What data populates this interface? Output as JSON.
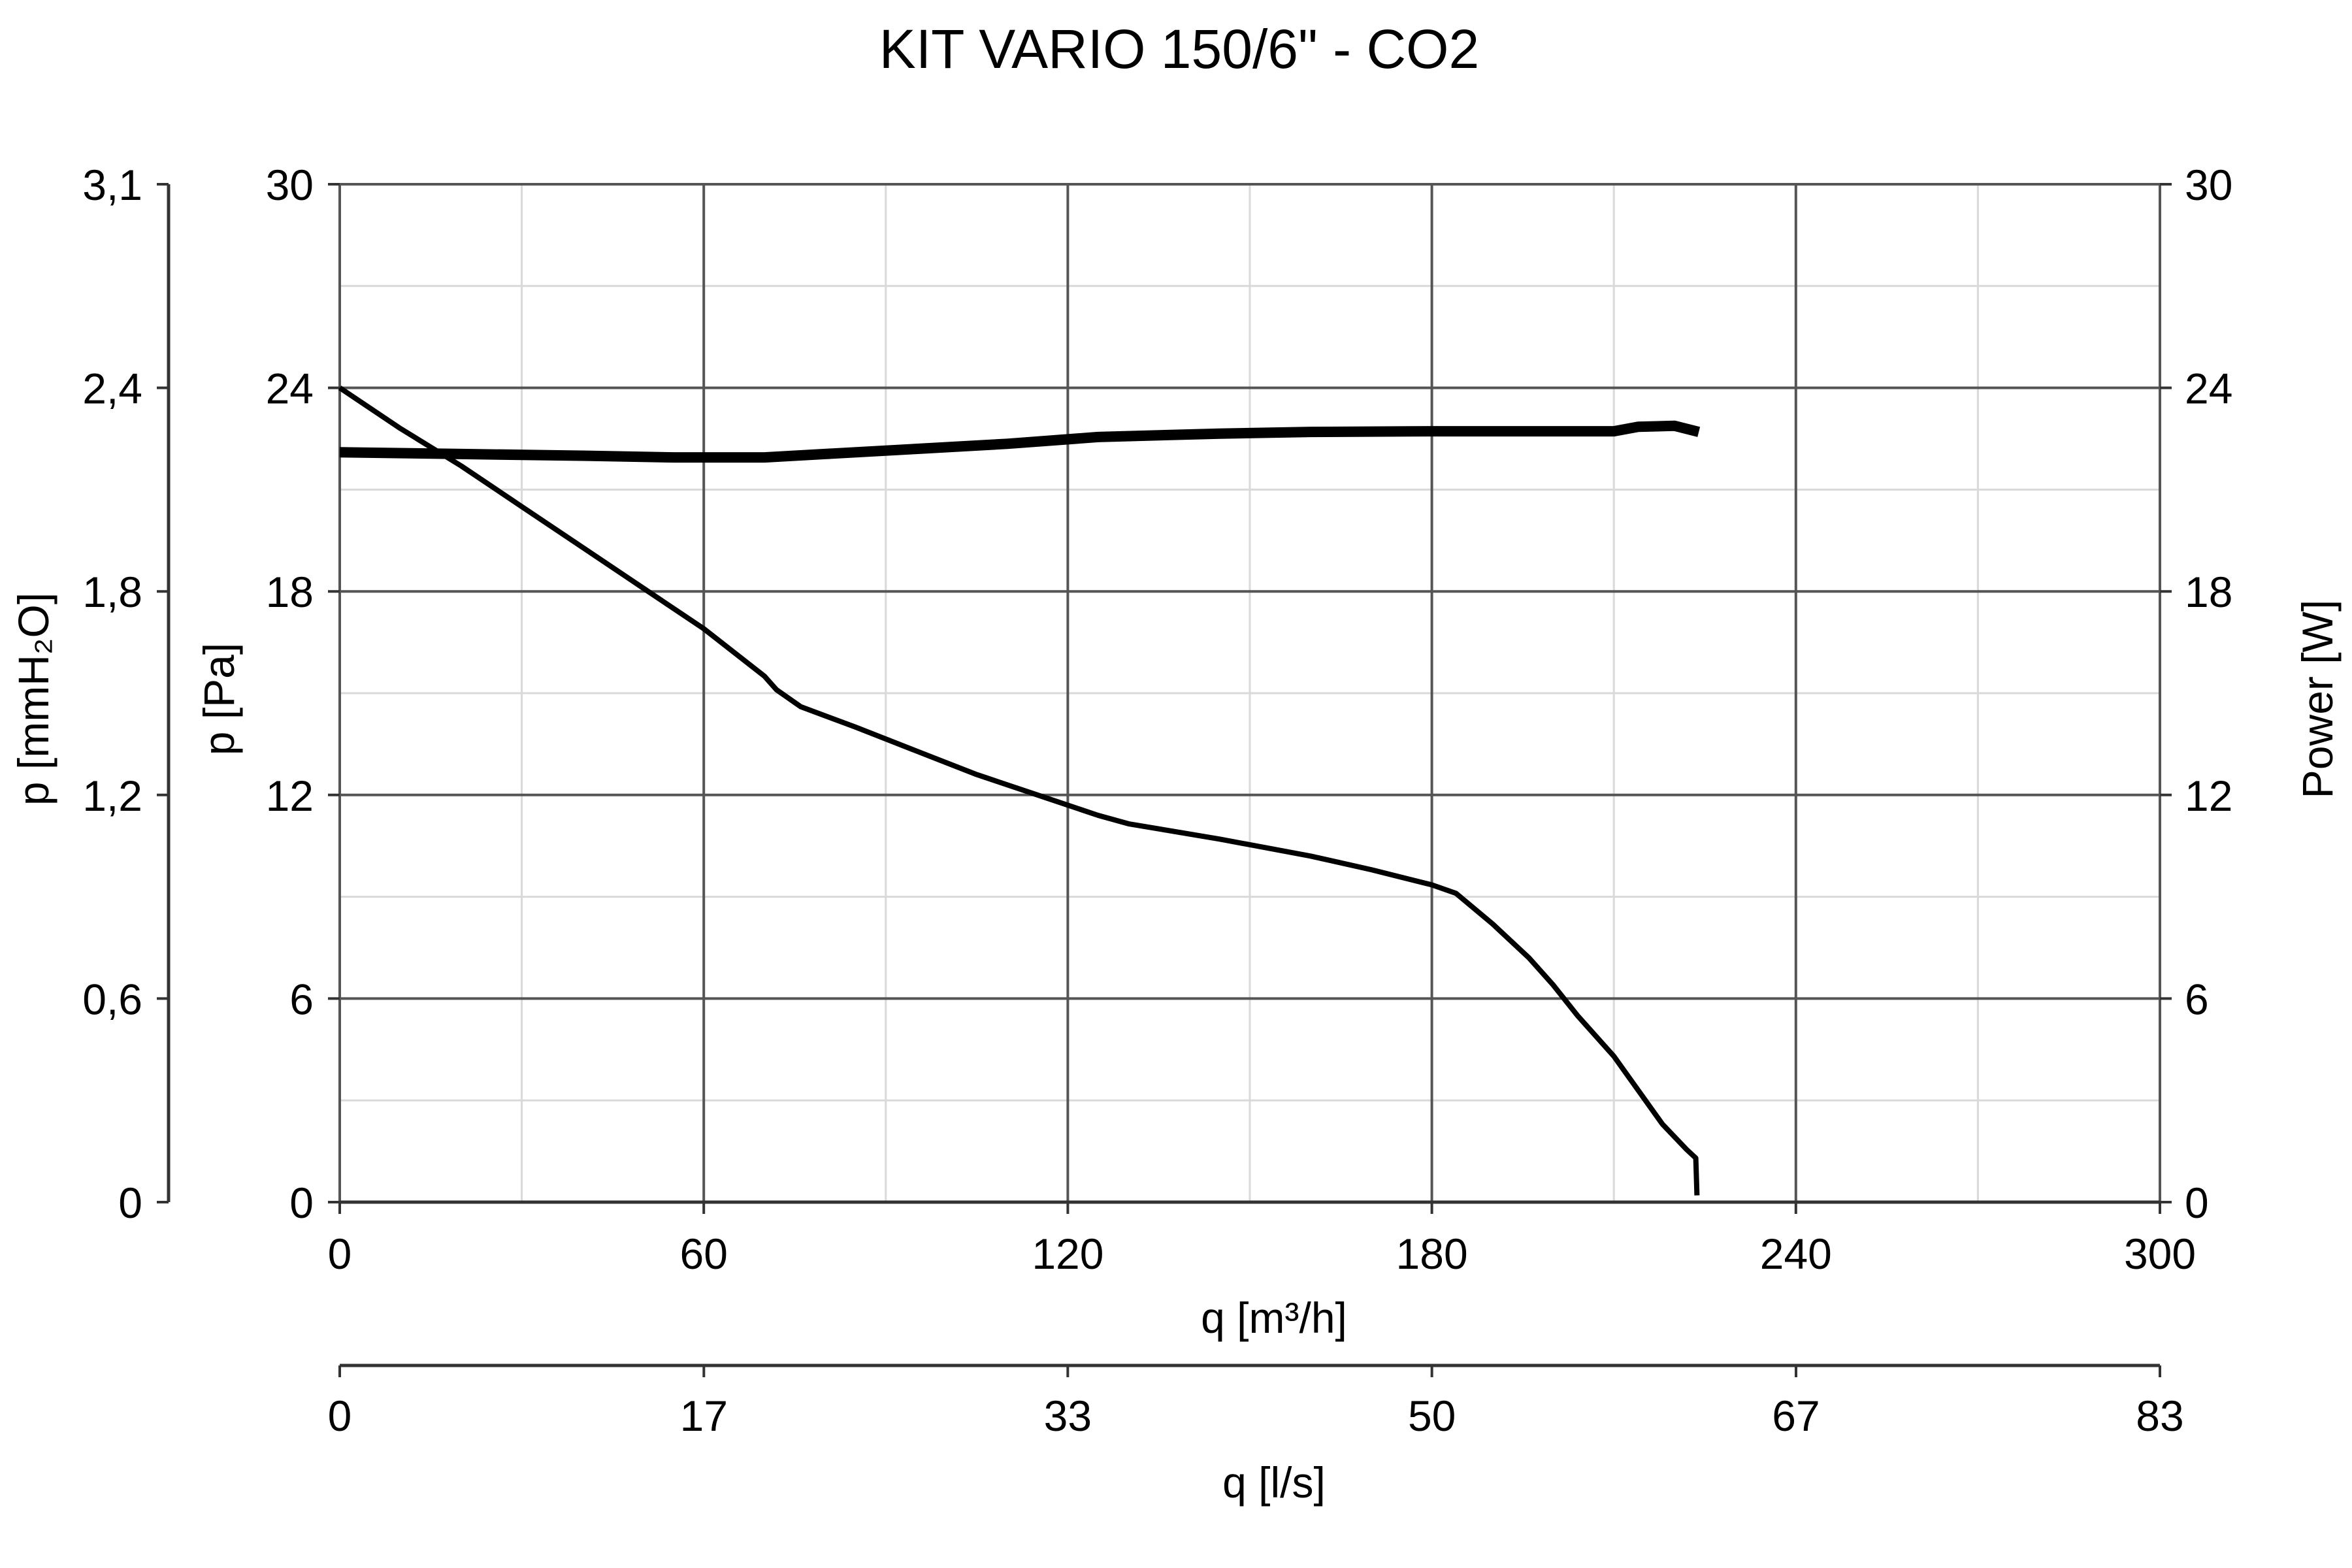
{
  "chart_data": {
    "type": "line",
    "title": "KIT VARIO 150/6\" - CO2",
    "x_axis": {
      "label": "q [m³/h]",
      "range": [
        0,
        300
      ],
      "major_ticks": [
        0,
        60,
        120,
        180,
        240,
        300
      ],
      "tick_labels": [
        "0",
        "60",
        "120",
        "180",
        "240",
        "300"
      ],
      "minor_step": 30
    },
    "x2_axis": {
      "label": "q [l/s]",
      "range": [
        0,
        83.33
      ],
      "tick_labels": [
        "0",
        "17",
        "33",
        "50",
        "67",
        "83"
      ],
      "tick_values": [
        0,
        16.67,
        33.33,
        50,
        66.67,
        83.33
      ]
    },
    "y_axis": {
      "label": "p [Pa]",
      "range": [
        0,
        30
      ],
      "major_ticks": [
        0,
        6,
        12,
        18,
        24,
        30
      ],
      "tick_labels": [
        "0",
        "6",
        "12",
        "18",
        "24",
        "30"
      ],
      "minor_step": 3
    },
    "y_outer_axis": {
      "label": "p [mmH₂O]",
      "range": [
        0,
        3.06
      ],
      "tick_labels": [
        "0",
        "0,6",
        "1,2",
        "1,8",
        "2,4",
        "3,1"
      ],
      "tick_values_pa": [
        0,
        6,
        12,
        18,
        24,
        30
      ]
    },
    "y_right_axis": {
      "label": "Power [W]",
      "range": [
        0,
        30
      ],
      "tick_labels": [
        "0",
        "6",
        "12",
        "18",
        "24",
        "30"
      ],
      "tick_values": [
        0,
        6,
        12,
        18,
        24,
        30
      ]
    },
    "grid": true,
    "series": [
      {
        "axis": "left",
        "stroke_width": 8,
        "points": [
          [
            0,
            24
          ],
          [
            10,
            22.8
          ],
          [
            20,
            21.7
          ],
          [
            30,
            20.5
          ],
          [
            40,
            19.3
          ],
          [
            50,
            18.1
          ],
          [
            60,
            16.9
          ],
          [
            70,
            15.5
          ],
          [
            72,
            15.1
          ],
          [
            76,
            14.6
          ],
          [
            85,
            14.0
          ],
          [
            95,
            13.3
          ],
          [
            105,
            12.6
          ],
          [
            115,
            12.0
          ],
          [
            125,
            11.4
          ],
          [
            130,
            11.15
          ],
          [
            145,
            10.7
          ],
          [
            160,
            10.2
          ],
          [
            170,
            9.8
          ],
          [
            180,
            9.35
          ],
          [
            184,
            9.1
          ],
          [
            190,
            8.2
          ],
          [
            196,
            7.2
          ],
          [
            200,
            6.4
          ],
          [
            204,
            5.5
          ],
          [
            210,
            4.3
          ],
          [
            214,
            3.3
          ],
          [
            218,
            2.3
          ],
          [
            222,
            1.55
          ],
          [
            223.5,
            1.3
          ],
          [
            223.7,
            0.2
          ]
        ]
      },
      {
        "axis": "right",
        "stroke_width": 16,
        "points": [
          [
            0,
            22.1
          ],
          [
            20,
            22.05
          ],
          [
            40,
            22.0
          ],
          [
            55,
            21.95
          ],
          [
            70,
            21.95
          ],
          [
            80,
            22.05
          ],
          [
            95,
            22.2
          ],
          [
            110,
            22.35
          ],
          [
            125,
            22.55
          ],
          [
            145,
            22.65
          ],
          [
            160,
            22.7
          ],
          [
            180,
            22.72
          ],
          [
            200,
            22.72
          ],
          [
            210,
            22.72
          ],
          [
            214,
            22.85
          ],
          [
            220,
            22.88
          ],
          [
            224,
            22.7
          ]
        ]
      }
    ]
  }
}
